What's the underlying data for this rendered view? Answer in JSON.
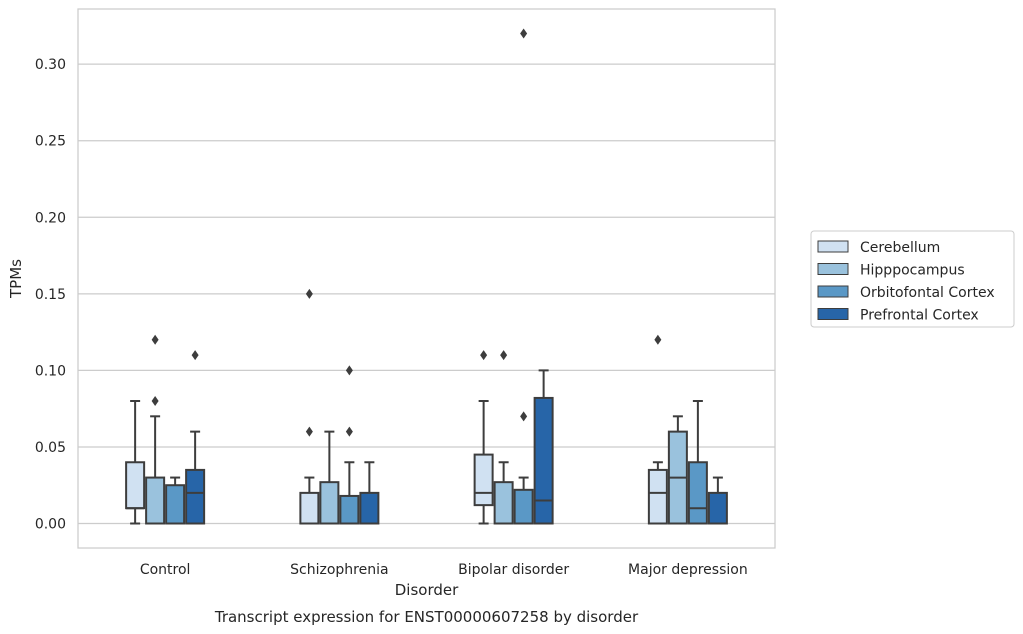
{
  "chart_data": {
    "type": "box",
    "title": "Transcript expression for ENST00000607258 by disorder",
    "xlabel": "Disorder",
    "ylabel": "TPMs",
    "ylim": [
      -0.016,
      0.336
    ],
    "yticks": [
      "0.00",
      "0.05",
      "0.10",
      "0.15",
      "0.20",
      "0.25",
      "0.30"
    ],
    "ytick_values": [
      0,
      0.05,
      0.1,
      0.15,
      0.2,
      0.25,
      0.3
    ],
    "grid": "horizontal",
    "legend_position": "outside-right",
    "categories": [
      "Control",
      "Schizophrenia",
      "Bipolar disorder",
      "Major depression"
    ],
    "series": [
      {
        "name": "Cerebellum",
        "color": "#d0e1f2",
        "boxes": [
          {
            "q1": 0.01,
            "median": 0.01,
            "q3": 0.04,
            "whisker_low": 0.0,
            "whisker_high": 0.08,
            "outliers": []
          },
          {
            "q1": 0.0,
            "median": 0.0,
            "q3": 0.02,
            "whisker_low": 0.0,
            "whisker_high": 0.03,
            "outliers": [
              0.06,
              0.15
            ]
          },
          {
            "q1": 0.012,
            "median": 0.02,
            "q3": 0.045,
            "whisker_low": 0.0,
            "whisker_high": 0.08,
            "outliers": [
              0.11
            ]
          },
          {
            "q1": 0.0,
            "median": 0.02,
            "q3": 0.035,
            "whisker_low": 0.0,
            "whisker_high": 0.04,
            "outliers": [
              0.12
            ]
          }
        ]
      },
      {
        "name": "Hipppocampus",
        "color": "#9ac2dd",
        "boxes": [
          {
            "q1": 0.0,
            "median": 0.0,
            "q3": 0.03,
            "whisker_low": 0.0,
            "whisker_high": 0.07,
            "outliers": [
              0.08,
              0.12
            ]
          },
          {
            "q1": 0.0,
            "median": 0.0,
            "q3": 0.027,
            "whisker_low": 0.0,
            "whisker_high": 0.06,
            "outliers": []
          },
          {
            "q1": 0.0,
            "median": 0.0,
            "q3": 0.027,
            "whisker_low": 0.0,
            "whisker_high": 0.04,
            "outliers": [
              0.11
            ]
          },
          {
            "q1": 0.0,
            "median": 0.03,
            "q3": 0.06,
            "whisker_low": 0.0,
            "whisker_high": 0.07,
            "outliers": []
          }
        ]
      },
      {
        "name": "Orbitofontal Cortex",
        "color": "#5a98c6",
        "boxes": [
          {
            "q1": 0.0,
            "median": 0.0,
            "q3": 0.025,
            "whisker_low": 0.0,
            "whisker_high": 0.03,
            "outliers": []
          },
          {
            "q1": 0.0,
            "median": 0.0,
            "q3": 0.018,
            "whisker_low": 0.0,
            "whisker_high": 0.04,
            "outliers": [
              0.06,
              0.1
            ]
          },
          {
            "q1": 0.0,
            "median": 0.0,
            "q3": 0.022,
            "whisker_low": 0.0,
            "whisker_high": 0.03,
            "outliers": [
              0.07,
              0.32
            ]
          },
          {
            "q1": 0.0,
            "median": 0.01,
            "q3": 0.04,
            "whisker_low": 0.0,
            "whisker_high": 0.08,
            "outliers": []
          }
        ]
      },
      {
        "name": "Prefrontal Cortex",
        "color": "#2765a8",
        "boxes": [
          {
            "q1": 0.0,
            "median": 0.02,
            "q3": 0.035,
            "whisker_low": 0.0,
            "whisker_high": 0.06,
            "outliers": [
              0.11
            ]
          },
          {
            "q1": 0.0,
            "median": 0.0,
            "q3": 0.02,
            "whisker_low": 0.0,
            "whisker_high": 0.04,
            "outliers": []
          },
          {
            "q1": 0.0,
            "median": 0.015,
            "q3": 0.082,
            "whisker_low": 0.0,
            "whisker_high": 0.1,
            "outliers": []
          },
          {
            "q1": 0.0,
            "median": 0.0,
            "q3": 0.02,
            "whisker_low": 0.0,
            "whisker_high": 0.03,
            "outliers": []
          }
        ]
      }
    ]
  }
}
